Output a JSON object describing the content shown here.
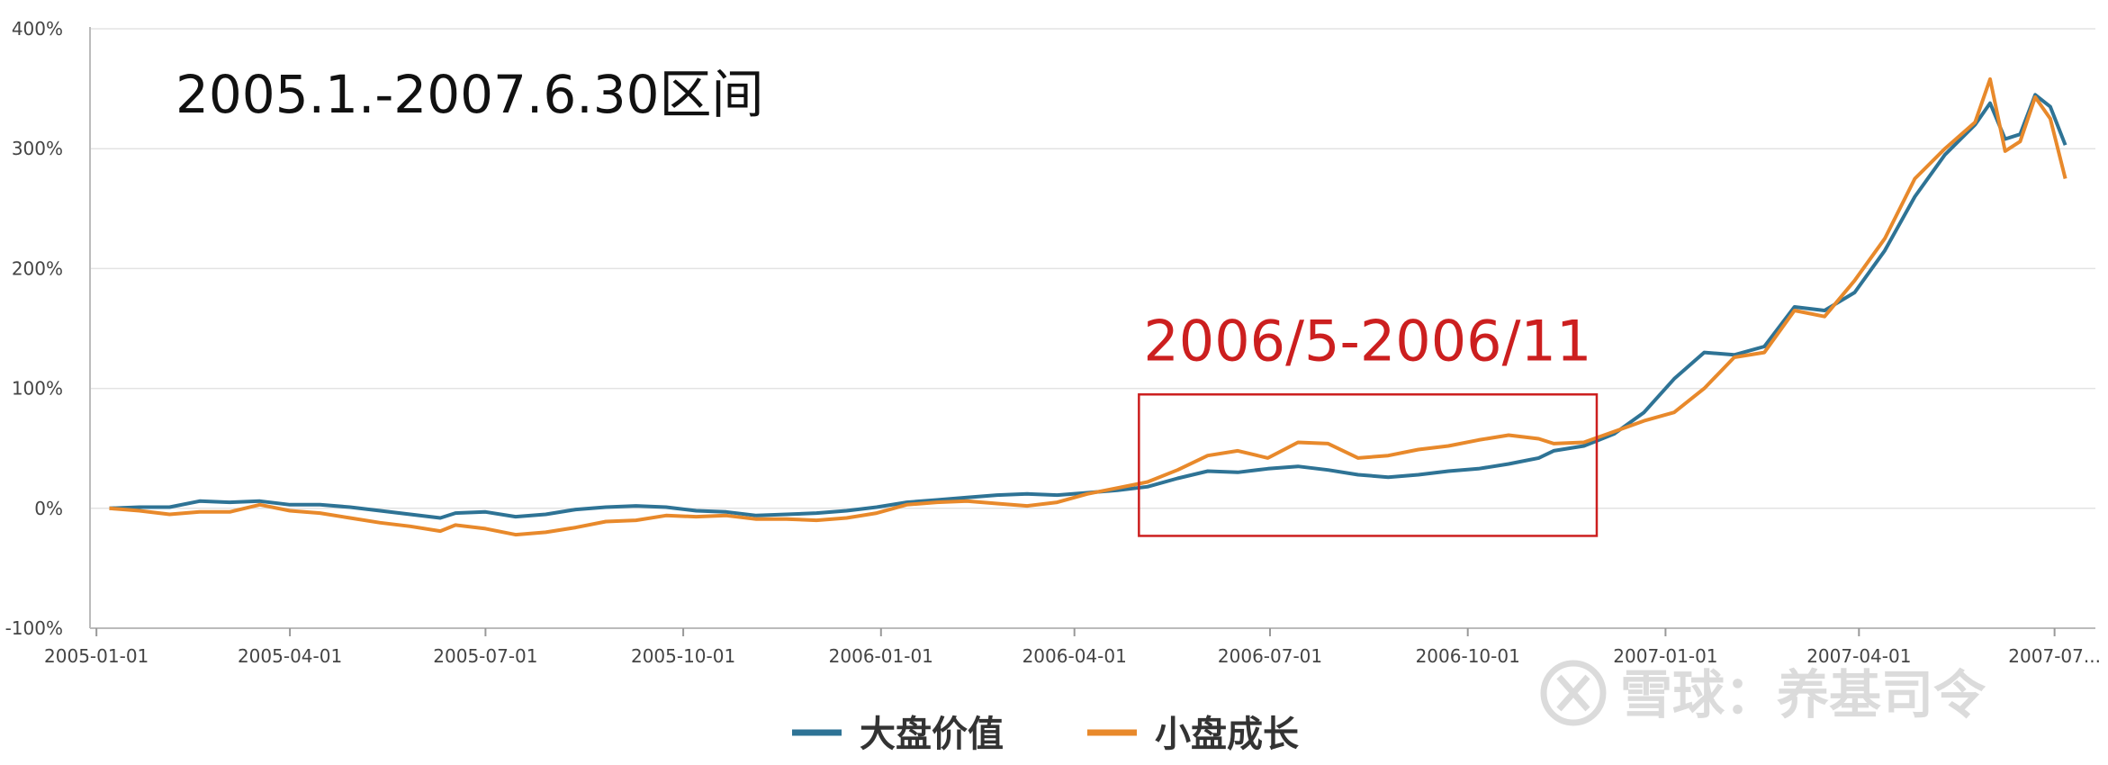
{
  "chart_data": {
    "type": "line",
    "title": "2005.1.-2007.6.30区间",
    "xlabel": "",
    "ylabel": "",
    "y_unit": "%",
    "ylim": [
      -100,
      400
    ],
    "y_ticks": [
      {
        "value": 400,
        "label": "400%"
      },
      {
        "value": 300,
        "label": "300%"
      },
      {
        "value": 200,
        "label": "200%"
      },
      {
        "value": 100,
        "label": "100%"
      },
      {
        "value": 0,
        "label": "0%"
      },
      {
        "value": -100,
        "label": "-100%"
      }
    ],
    "x_range": [
      "2004-12-29",
      "2007-07-20"
    ],
    "x_ticks": [
      {
        "value": "2005-01-01",
        "label": "2005-01-01"
      },
      {
        "value": "2005-04-01",
        "label": "2005-04-01"
      },
      {
        "value": "2005-07-01",
        "label": "2005-07-01"
      },
      {
        "value": "2005-10-01",
        "label": "2005-10-01"
      },
      {
        "value": "2006-01-01",
        "label": "2006-01-01"
      },
      {
        "value": "2006-04-01",
        "label": "2006-04-01"
      },
      {
        "value": "2006-07-01",
        "label": "2006-07-01"
      },
      {
        "value": "2006-10-01",
        "label": "2006-10-01"
      },
      {
        "value": "2007-01-01",
        "label": "2007-01-01"
      },
      {
        "value": "2007-04-01",
        "label": "2007-04-01"
      },
      {
        "value": "2007-07-01",
        "label": "2007-07..."
      }
    ],
    "grid": true,
    "legend_position": "bottom-center",
    "series": [
      {
        "name": "大盘价值",
        "color": "#2e7395",
        "points": [
          [
            "2005-01-07",
            0
          ],
          [
            "2005-01-21",
            1
          ],
          [
            "2005-02-04",
            1
          ],
          [
            "2005-02-18",
            6
          ],
          [
            "2005-03-04",
            5
          ],
          [
            "2005-03-18",
            6
          ],
          [
            "2005-04-01",
            3
          ],
          [
            "2005-04-15",
            3
          ],
          [
            "2005-04-29",
            1
          ],
          [
            "2005-05-13",
            -2
          ],
          [
            "2005-05-27",
            -5
          ],
          [
            "2005-06-10",
            -8
          ],
          [
            "2005-06-17",
            -4
          ],
          [
            "2005-07-01",
            -3
          ],
          [
            "2005-07-15",
            -7
          ],
          [
            "2005-07-29",
            -5
          ],
          [
            "2005-08-12",
            -1
          ],
          [
            "2005-08-26",
            1
          ],
          [
            "2005-09-09",
            2
          ],
          [
            "2005-09-23",
            1
          ],
          [
            "2005-10-07",
            -2
          ],
          [
            "2005-10-21",
            -3
          ],
          [
            "2005-11-04",
            -6
          ],
          [
            "2005-11-18",
            -5
          ],
          [
            "2005-12-02",
            -4
          ],
          [
            "2005-12-16",
            -2
          ],
          [
            "2005-12-30",
            1
          ],
          [
            "2006-01-13",
            5
          ],
          [
            "2006-01-27",
            7
          ],
          [
            "2006-02-10",
            9
          ],
          [
            "2006-02-24",
            11
          ],
          [
            "2006-03-10",
            12
          ],
          [
            "2006-03-24",
            11
          ],
          [
            "2006-04-07",
            13
          ],
          [
            "2006-04-21",
            15
          ],
          [
            "2006-05-05",
            18
          ],
          [
            "2006-05-19",
            25
          ],
          [
            "2006-06-02",
            31
          ],
          [
            "2006-06-16",
            30
          ],
          [
            "2006-06-30",
            33
          ],
          [
            "2006-07-14",
            35
          ],
          [
            "2006-07-28",
            32
          ],
          [
            "2006-08-11",
            28
          ],
          [
            "2006-08-25",
            26
          ],
          [
            "2006-09-08",
            28
          ],
          [
            "2006-09-22",
            31
          ],
          [
            "2006-10-06",
            33
          ],
          [
            "2006-10-20",
            37
          ],
          [
            "2006-11-03",
            42
          ],
          [
            "2006-11-10",
            48
          ],
          [
            "2006-11-24",
            52
          ],
          [
            "2006-12-08",
            62
          ],
          [
            "2006-12-22",
            80
          ],
          [
            "2007-01-05",
            108
          ],
          [
            "2007-01-19",
            130
          ],
          [
            "2007-02-02",
            128
          ],
          [
            "2007-02-16",
            135
          ],
          [
            "2007-03-02",
            168
          ],
          [
            "2007-03-16",
            165
          ],
          [
            "2007-03-30",
            180
          ],
          [
            "2007-04-13",
            215
          ],
          [
            "2007-04-27",
            260
          ],
          [
            "2007-05-11",
            295
          ],
          [
            "2007-05-25",
            320
          ],
          [
            "2007-06-01",
            338
          ],
          [
            "2007-06-08",
            308
          ],
          [
            "2007-06-15",
            312
          ],
          [
            "2007-06-22",
            345
          ],
          [
            "2007-06-29",
            335
          ],
          [
            "2007-07-06",
            303
          ]
        ]
      },
      {
        "name": "小盘成长",
        "color": "#e8892b",
        "points": [
          [
            "2005-01-07",
            0
          ],
          [
            "2005-01-21",
            -2
          ],
          [
            "2005-02-04",
            -5
          ],
          [
            "2005-02-18",
            -3
          ],
          [
            "2005-03-04",
            -3
          ],
          [
            "2005-03-18",
            3
          ],
          [
            "2005-04-01",
            -2
          ],
          [
            "2005-04-15",
            -4
          ],
          [
            "2005-04-29",
            -8
          ],
          [
            "2005-05-13",
            -12
          ],
          [
            "2005-05-27",
            -15
          ],
          [
            "2005-06-10",
            -19
          ],
          [
            "2005-06-17",
            -14
          ],
          [
            "2005-07-01",
            -17
          ],
          [
            "2005-07-15",
            -22
          ],
          [
            "2005-07-29",
            -20
          ],
          [
            "2005-08-12",
            -16
          ],
          [
            "2005-08-26",
            -11
          ],
          [
            "2005-09-09",
            -10
          ],
          [
            "2005-09-23",
            -6
          ],
          [
            "2005-10-07",
            -7
          ],
          [
            "2005-10-21",
            -6
          ],
          [
            "2005-11-04",
            -9
          ],
          [
            "2005-11-18",
            -9
          ],
          [
            "2005-12-02",
            -10
          ],
          [
            "2005-12-16",
            -8
          ],
          [
            "2005-12-30",
            -4
          ],
          [
            "2006-01-13",
            3
          ],
          [
            "2006-01-27",
            5
          ],
          [
            "2006-02-10",
            6
          ],
          [
            "2006-02-24",
            4
          ],
          [
            "2006-03-10",
            2
          ],
          [
            "2006-03-24",
            5
          ],
          [
            "2006-04-07",
            12
          ],
          [
            "2006-04-21",
            17
          ],
          [
            "2006-05-05",
            22
          ],
          [
            "2006-05-19",
            32
          ],
          [
            "2006-06-02",
            44
          ],
          [
            "2006-06-16",
            48
          ],
          [
            "2006-06-30",
            42
          ],
          [
            "2006-07-14",
            55
          ],
          [
            "2006-07-28",
            54
          ],
          [
            "2006-08-11",
            42
          ],
          [
            "2006-08-25",
            44
          ],
          [
            "2006-09-08",
            49
          ],
          [
            "2006-09-22",
            52
          ],
          [
            "2006-10-06",
            57
          ],
          [
            "2006-10-20",
            61
          ],
          [
            "2006-11-03",
            58
          ],
          [
            "2006-11-10",
            54
          ],
          [
            "2006-11-24",
            55
          ],
          [
            "2006-12-08",
            64
          ],
          [
            "2006-12-22",
            73
          ],
          [
            "2007-01-05",
            80
          ],
          [
            "2007-01-19",
            100
          ],
          [
            "2007-02-02",
            126
          ],
          [
            "2007-02-16",
            130
          ],
          [
            "2007-03-02",
            165
          ],
          [
            "2007-03-16",
            160
          ],
          [
            "2007-03-30",
            190
          ],
          [
            "2007-04-13",
            225
          ],
          [
            "2007-04-27",
            275
          ],
          [
            "2007-05-11",
            300
          ],
          [
            "2007-05-25",
            322
          ],
          [
            "2007-06-01",
            358
          ],
          [
            "2007-06-08",
            298
          ],
          [
            "2007-06-15",
            306
          ],
          [
            "2007-06-22",
            343
          ],
          [
            "2007-06-29",
            325
          ],
          [
            "2007-07-06",
            275
          ]
        ]
      }
    ],
    "annotations": [
      {
        "type": "box",
        "color": "#cc1f1f",
        "x_from": "2006-05-01",
        "x_to": "2006-11-30",
        "y_from": -23,
        "y_to": 95
      },
      {
        "type": "text",
        "text": "2006/5-2006/11",
        "color": "#cc1f1f"
      }
    ]
  },
  "watermark": {
    "text": "雪球：养基司令",
    "icon": "snowball-logo-icon"
  }
}
